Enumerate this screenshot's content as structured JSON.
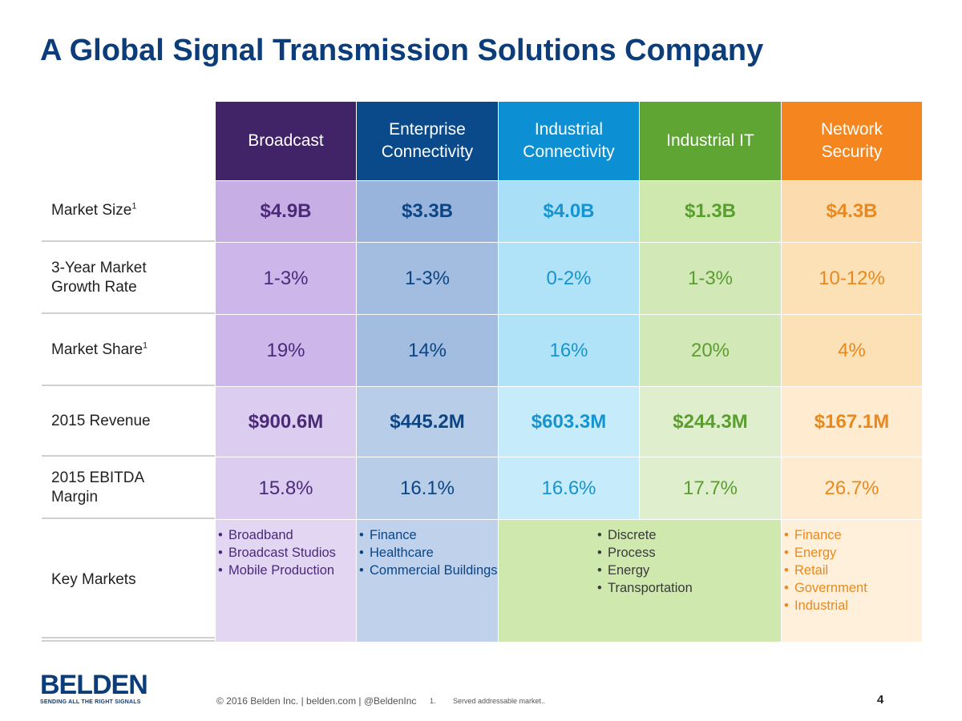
{
  "title": "A Global Signal Transmission Solutions Company",
  "colors": {
    "broadcast": "#412367",
    "enterprise_connectivity": "#0a4a8a",
    "industrial_connectivity": "#0d8fd4",
    "industrial_it": "#5ea533",
    "network_security": "#f5861f",
    "brand_blue": "#0b3d7a"
  },
  "table": {
    "columns": [
      {
        "line1": "Broadcast",
        "line2": ""
      },
      {
        "line1": "Enterprise",
        "line2": "Connectivity"
      },
      {
        "line1": "Industrial",
        "line2": "Connectivity"
      },
      {
        "line1": "Industrial IT",
        "line2": ""
      },
      {
        "line1": "Network",
        "line2": "Security"
      }
    ],
    "rows": [
      {
        "label_line1": "Market Size",
        "label_line2": "",
        "footnote": "1",
        "values": [
          "$4.9B",
          "$3.3B",
          "$4.0B",
          "$1.3B",
          "$4.3B"
        ]
      },
      {
        "label_line1": "3-Year Market",
        "label_line2": "Growth Rate",
        "footnote": "",
        "values": [
          "1-3%",
          "1-3%",
          "0-2%",
          "1-3%",
          "10-12%"
        ]
      },
      {
        "label_line1": "Market Share",
        "label_line2": "",
        "footnote": "1",
        "values": [
          "19%",
          "14%",
          "16%",
          "20%",
          "4%"
        ]
      },
      {
        "label_line1": "2015 Revenue",
        "label_line2": "",
        "footnote": "",
        "values": [
          "$900.6M",
          "$445.2M",
          "$603.3M",
          "$244.3M",
          "$167.1M"
        ]
      },
      {
        "label_line1": "2015 EBITDA",
        "label_line2": "Margin",
        "footnote": "",
        "values": [
          "15.8%",
          "16.1%",
          "16.6%",
          "17.7%",
          "26.7%"
        ]
      }
    ],
    "key_markets": {
      "label": "Key Markets",
      "broadcast": [
        "Broadband",
        "Broadcast Studios",
        "Mobile Production"
      ],
      "enterprise_connectivity": [
        "Finance",
        "Healthcare",
        "Commercial Buildings"
      ],
      "industrial": [
        "Discrete",
        "Process",
        "Energy",
        "Transportation"
      ],
      "network_security": [
        "Finance",
        "Energy",
        "Retail",
        "Government",
        "Industrial"
      ]
    }
  },
  "footer": {
    "logo_word": "BELDEN",
    "logo_tagline": "SENDING ALL THE RIGHT SIGNALS",
    "copyright": "© 2016 Belden Inc. | belden.com | @BeldenInc",
    "footnote_number": "1.",
    "footnote_text": "Served addressable market..",
    "page_number": "4"
  }
}
